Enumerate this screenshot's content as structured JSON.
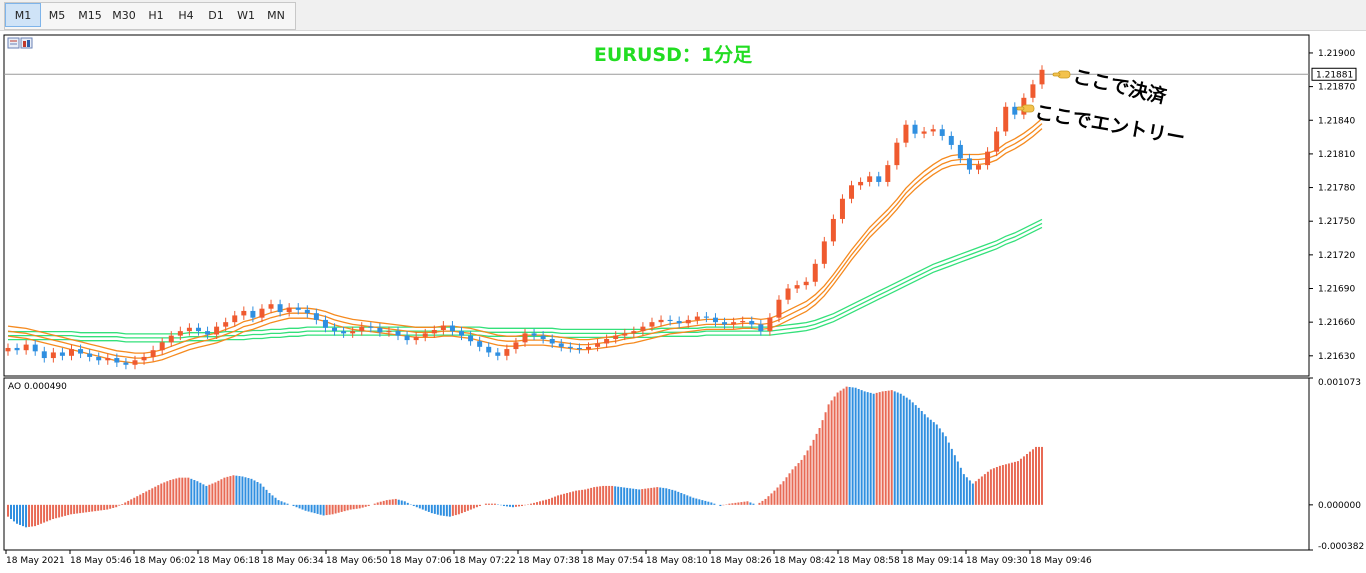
{
  "toolbar": {
    "timeframes": [
      "M1",
      "M5",
      "M15",
      "M30",
      "H1",
      "H4",
      "D1",
      "W1",
      "MN"
    ],
    "active": "M1"
  },
  "chart_data": {
    "type": "candlestick",
    "title": "EURUSD：1分足",
    "symbol": "EURUSD",
    "timeframe": "M1",
    "current_price_label": "1.21881",
    "current_price": 1.21881,
    "price_axis_ticks": [
      "1.21900",
      "1.21870",
      "1.21840",
      "1.21810",
      "1.21780",
      "1.21750",
      "1.21720",
      "1.21690",
      "1.21660",
      "1.21630"
    ],
    "price_axis_values": [
      1.219,
      1.2187,
      1.2184,
      1.2181,
      1.2178,
      1.2175,
      1.2172,
      1.2169,
      1.2166,
      1.2163
    ],
    "ylim": [
      1.21612,
      1.21916
    ],
    "time_axis_labels": [
      "18 May 2021",
      "18 May 05:46",
      "18 May 06:02",
      "18 May 06:18",
      "18 May 06:34",
      "18 May 06:50",
      "18 May 07:06",
      "18 May 07:22",
      "18 May 07:38",
      "18 May 07:54",
      "18 May 08:10",
      "18 May 08:26",
      "18 May 08:42",
      "18 May 08:58",
      "18 May 09:14",
      "18 May 09:30",
      "18 May 09:46"
    ],
    "annotations": [
      {
        "text": "ここで決済",
        "kind": "exit"
      },
      {
        "text": "ここでエントリー",
        "kind": "entry"
      }
    ],
    "close_path": [
      1.21637,
      1.21635,
      1.2164,
      1.21634,
      1.21628,
      1.21633,
      1.2163,
      1.21636,
      1.21632,
      1.21629,
      1.21626,
      1.21628,
      1.21624,
      1.21622,
      1.21626,
      1.21629,
      1.21635,
      1.21642,
      1.21648,
      1.21652,
      1.21655,
      1.21652,
      1.21649,
      1.21656,
      1.2166,
      1.21666,
      1.2167,
      1.21664,
      1.21672,
      1.21676,
      1.21669,
      1.21673,
      1.21671,
      1.21668,
      1.21662,
      1.21655,
      1.21652,
      1.2165,
      1.21652,
      1.21656,
      1.21655,
      1.21651,
      1.21652,
      1.21648,
      1.21644,
      1.21647,
      1.2165,
      1.21653,
      1.21657,
      1.21652,
      1.21648,
      1.21643,
      1.21638,
      1.21633,
      1.2163,
      1.21636,
      1.21642,
      1.2165,
      1.21648,
      1.21645,
      1.21641,
      1.21638,
      1.21637,
      1.21636,
      1.21638,
      1.21641,
      1.21645,
      1.21648,
      1.2165,
      1.21652,
      1.21656,
      1.2166,
      1.21662,
      1.21661,
      1.21659,
      1.21662,
      1.21665,
      1.21664,
      1.2166,
      1.21658,
      1.2166,
      1.21661,
      1.21658,
      1.21652,
      1.21664,
      1.2168,
      1.2169,
      1.21693,
      1.21696,
      1.21712,
      1.21732,
      1.21752,
      1.2177,
      1.21782,
      1.21785,
      1.2179,
      1.21785,
      1.218,
      1.2182,
      1.21836,
      1.21828,
      1.2183,
      1.21832,
      1.21826,
      1.21818,
      1.21806,
      1.21796,
      1.218,
      1.21812,
      1.2183,
      1.21852,
      1.21845,
      1.2186,
      1.21872,
      1.21885
    ],
    "ema_fast": [
      1.21652,
      1.21651,
      1.2165,
      1.21648,
      1.21646,
      1.21644,
      1.21642,
      1.2164,
      1.21638,
      1.21636,
      1.21634,
      1.21632,
      1.2163,
      1.21629,
      1.21628,
      1.21628,
      1.21629,
      1.21631,
      1.21634,
      1.21637,
      1.2164,
      1.21642,
      1.21644,
      1.21646,
      1.21649,
      1.21652,
      1.21656,
      1.21658,
      1.21661,
      1.21664,
      1.21666,
      1.21668,
      1.21668,
      1.21668,
      1.21667,
      1.21665,
      1.21662,
      1.2166,
      1.21658,
      1.21657,
      1.21656,
      1.21655,
      1.21654,
      1.21653,
      1.21652,
      1.21651,
      1.21651,
      1.21651,
      1.21652,
      1.21652,
      1.21651,
      1.2165,
      1.21648,
      1.21646,
      1.21644,
      1.21643,
      1.21643,
      1.21644,
      1.21644,
      1.21644,
      1.21643,
      1.21642,
      1.21641,
      1.2164,
      1.2164,
      1.21641,
      1.21642,
      1.21643,
      1.21645,
      1.21646,
      1.21648,
      1.2165,
      1.21652,
      1.21654,
      1.21655,
      1.21656,
      1.21657,
      1.21658,
      1.21658,
      1.21658,
      1.21658,
      1.21659,
      1.21659,
      1.21658,
      1.21659,
      1.21662,
      1.21666,
      1.2167,
      1.21674,
      1.2168,
      1.21688,
      1.21698,
      1.21709,
      1.2172,
      1.2173,
      1.2174,
      1.21748,
      1.21756,
      1.21765,
      1.21775,
      1.21783,
      1.2179,
      1.21796,
      1.21801,
      1.21804,
      1.21805,
      1.21805,
      1.21805,
      1.21806,
      1.21809,
      1.21815,
      1.21819,
      1.21824,
      1.2183,
      1.21837
    ],
    "ema_slow": [
      1.21648,
      1.21648,
      1.21648,
      1.21648,
      1.21648,
      1.21648,
      1.21648,
      1.21648,
      1.21647,
      1.21647,
      1.21647,
      1.21647,
      1.21647,
      1.21646,
      1.21646,
      1.21646,
      1.21646,
      1.21646,
      1.21646,
      1.21646,
      1.21647,
      1.21647,
      1.21647,
      1.21647,
      1.21648,
      1.21648,
      1.21648,
      1.21649,
      1.21649,
      1.2165,
      1.2165,
      1.21651,
      1.21651,
      1.21652,
      1.21652,
      1.21652,
      1.21652,
      1.21652,
      1.21652,
      1.21652,
      1.21652,
      1.21652,
      1.21652,
      1.21652,
      1.21652,
      1.21652,
      1.21652,
      1.21652,
      1.21652,
      1.21652,
      1.21652,
      1.21652,
      1.21652,
      1.21651,
      1.21651,
      1.21651,
      1.21651,
      1.21651,
      1.21651,
      1.21651,
      1.21651,
      1.2165,
      1.2165,
      1.2165,
      1.2165,
      1.2165,
      1.2165,
      1.2165,
      1.2165,
      1.2165,
      1.2165,
      1.2165,
      1.21651,
      1.21651,
      1.21651,
      1.21651,
      1.21651,
      1.21652,
      1.21652,
      1.21652,
      1.21652,
      1.21652,
      1.21652,
      1.21652,
      1.21652,
      1.21653,
      1.21654,
      1.21655,
      1.21656,
      1.21658,
      1.21661,
      1.21664,
      1.21668,
      1.21672,
      1.21676,
      1.2168,
      1.21684,
      1.21688,
      1.21692,
      1.21696,
      1.217,
      1.21704,
      1.21708,
      1.21711,
      1.21714,
      1.21717,
      1.2172,
      1.21723,
      1.21726,
      1.21729,
      1.21733,
      1.21736,
      1.2174,
      1.21744,
      1.21748
    ],
    "ao": {
      "label": "AO 0.000490",
      "axis_ticks": [
        "0.001073",
        "0.000000",
        "-0.000382"
      ],
      "ylim": [
        -0.000382,
        0.001073
      ],
      "values": [
        -0.0001,
        -0.00016,
        -0.00019,
        -0.00018,
        -0.00015,
        -0.00012,
        -0.0001,
        -8e-05,
        -7e-05,
        -6e-05,
        -5e-05,
        -4e-05,
        -2e-05,
        2e-05,
        6e-05,
        0.0001,
        0.00014,
        0.00018,
        0.00021,
        0.00023,
        0.00023,
        0.0002,
        0.00016,
        0.00019,
        0.00023,
        0.00025,
        0.00024,
        0.00022,
        0.00018,
        0.0001,
        4e-05,
        1e-05,
        -2e-05,
        -5e-05,
        -7e-05,
        -9e-05,
        -8e-05,
        -6e-05,
        -4e-05,
        -3e-05,
        -1e-05,
        2e-05,
        4e-05,
        5e-05,
        3e-05,
        -1e-05,
        -4e-05,
        -7e-05,
        -9e-05,
        -0.0001,
        -8e-05,
        -5e-05,
        -2e-05,
        1e-05,
        1e-05,
        -1e-05,
        -2e-05,
        -1e-05,
        1e-05,
        3e-05,
        5e-05,
        8e-05,
        0.0001,
        0.00012,
        0.00013,
        0.00015,
        0.00016,
        0.00016,
        0.00015,
        0.00014,
        0.00013,
        0.00014,
        0.00015,
        0.00014,
        0.00012,
        9e-05,
        6e-05,
        4e-05,
        2e-05,
        -1e-05,
        1e-05,
        2e-05,
        3e-05,
        0.0,
        5e-05,
        0.00012,
        0.0002,
        0.0003,
        0.00038,
        0.0005,
        0.00065,
        0.00085,
        0.00095,
        0.001,
        0.00099,
        0.00096,
        0.00094,
        0.00096,
        0.00097,
        0.00094,
        0.00089,
        0.00082,
        0.00074,
        0.00068,
        0.00058,
        0.00042,
        0.00026,
        0.00018,
        0.00024,
        0.0003,
        0.00033,
        0.00035,
        0.00037,
        0.00043,
        0.00049
      ]
    },
    "colors": {
      "bull_candle": "#ef5a2f",
      "bear_candle": "#2f8fe0",
      "doji_candle": "#000000",
      "ema_fast": "#f58a1f",
      "ema_slow": "#33e07a",
      "ao_up": "#e86a55",
      "ao_down": "#2f8fe0",
      "title": "#22dd22"
    }
  }
}
